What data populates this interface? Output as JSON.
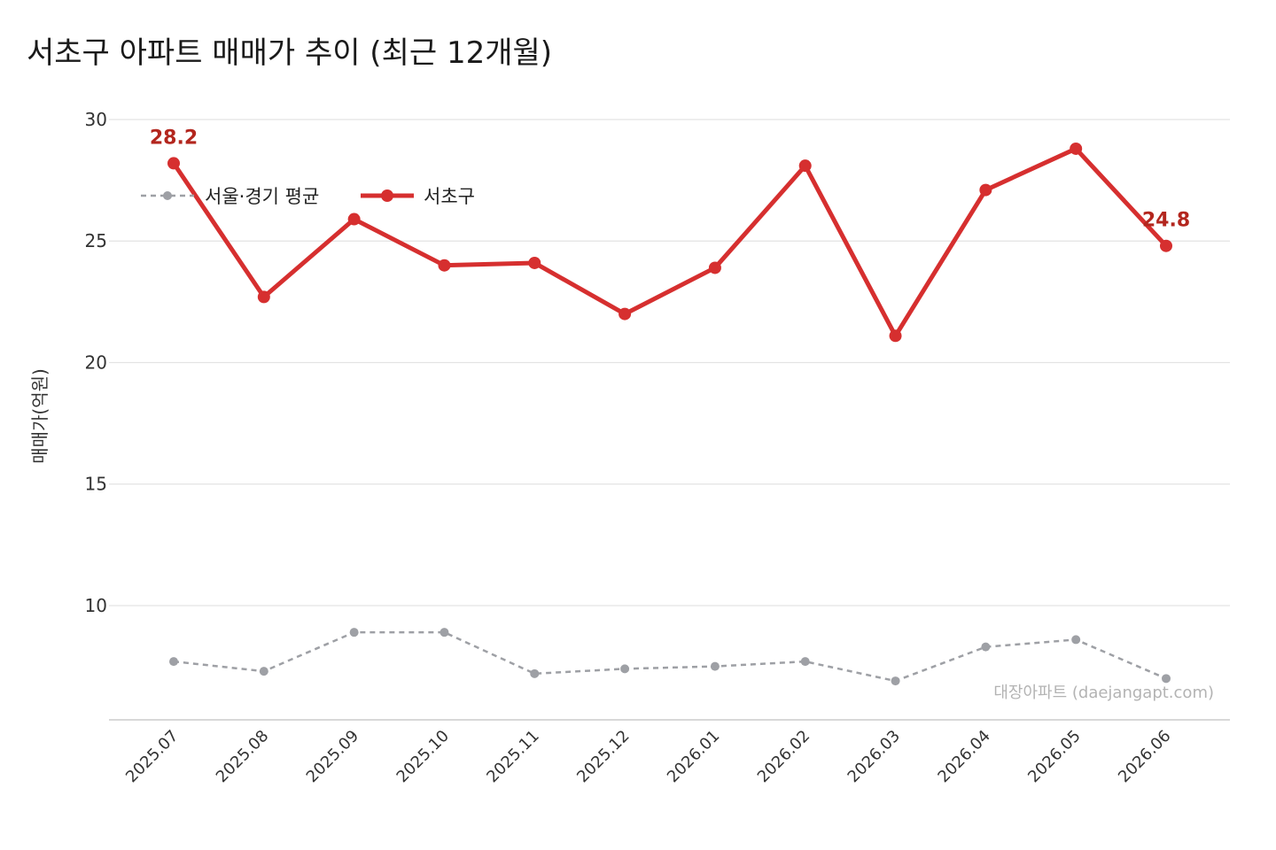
{
  "chart_data": {
    "type": "line",
    "title": "서초구 아파트 매매가 추이 (최근 12개월)",
    "ylabel": "매매가(억원)",
    "xlabel": "",
    "ylim": [
      5.3,
      30
    ],
    "yticks": [
      10,
      15,
      20,
      25,
      30
    ],
    "grid": true,
    "legend_position": "top-left",
    "categories": [
      "2025.07",
      "2025.08",
      "2025.09",
      "2025.10",
      "2025.11",
      "2025.12",
      "2026.01",
      "2026.02",
      "2026.03",
      "2026.04",
      "2026.05",
      "2026.06"
    ],
    "series": [
      {
        "name": "서울·경기 평균",
        "style": "dashed",
        "color": "#9ea0a5",
        "values": [
          7.7,
          7.3,
          8.9,
          8.9,
          7.2,
          7.4,
          7.5,
          7.7,
          6.9,
          8.3,
          8.6,
          7.0
        ]
      },
      {
        "name": "서초구",
        "style": "solid",
        "color": "#d62f2f",
        "values": [
          28.2,
          22.7,
          25.9,
          24.0,
          24.1,
          22.0,
          23.9,
          28.1,
          21.1,
          27.1,
          28.8,
          24.8
        ]
      }
    ],
    "annotations": [
      {
        "series": 1,
        "index": 0,
        "text": "28.2",
        "color": "#b3261e"
      },
      {
        "series": 1,
        "index": 11,
        "text": "24.8",
        "color": "#b3261e"
      }
    ],
    "watermark": "대장아파트 (daejangapt.com)"
  }
}
